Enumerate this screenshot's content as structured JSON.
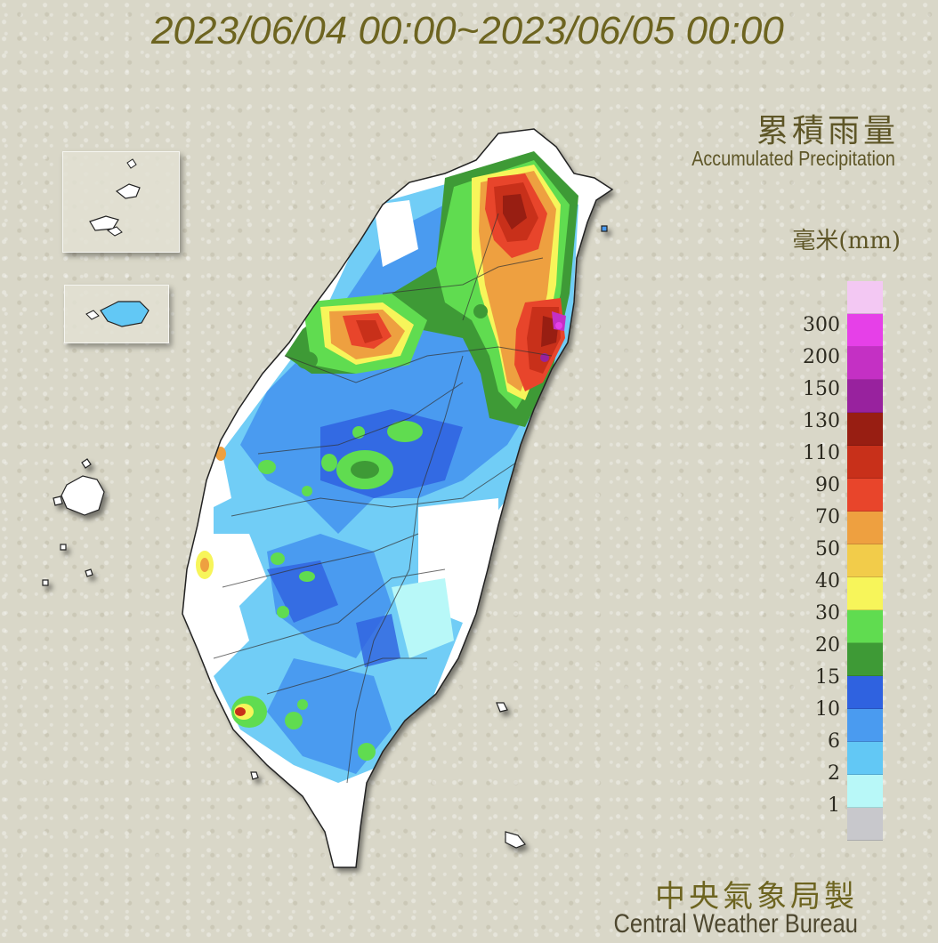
{
  "header": {
    "title": "2023/06/04 00:00~2023/06/05 00:00"
  },
  "legend": {
    "title_zh": "累積雨量",
    "title_en": "Accumulated Precipitation",
    "unit": "毫米(mm)",
    "levels": [
      {
        "label": "300",
        "color": "#f3c8f3"
      },
      {
        "label": "200",
        "color": "#e640e8"
      },
      {
        "label": "150",
        "color": "#c430c4"
      },
      {
        "label": "130",
        "color": "#98229e"
      },
      {
        "label": "110",
        "color": "#981e12"
      },
      {
        "label": "90",
        "color": "#c8301a"
      },
      {
        "label": "70",
        "color": "#e8452b"
      },
      {
        "label": "50",
        "color": "#eea040"
      },
      {
        "label": "40",
        "color": "#f2cc4a"
      },
      {
        "label": "30",
        "color": "#f7f55a"
      },
      {
        "label": "20",
        "color": "#60dc50"
      },
      {
        "label": "15",
        "color": "#3e9a36"
      },
      {
        "label": "10",
        "color": "#2f62e0"
      },
      {
        "label": "6",
        "color": "#4a9bf0"
      },
      {
        "label": "2",
        "color": "#62c8f5"
      },
      {
        "label": "1",
        "color": "#b8f8f8"
      },
      {
        "label": "",
        "color": "#c8c8cc"
      }
    ]
  },
  "footer": {
    "agency_zh": "中央氣象局製",
    "agency_en": "Central Weather Bureau"
  },
  "colors": {
    "background": "#d9d7c8",
    "title": "#6d6420",
    "island_base": "#ffffff"
  }
}
